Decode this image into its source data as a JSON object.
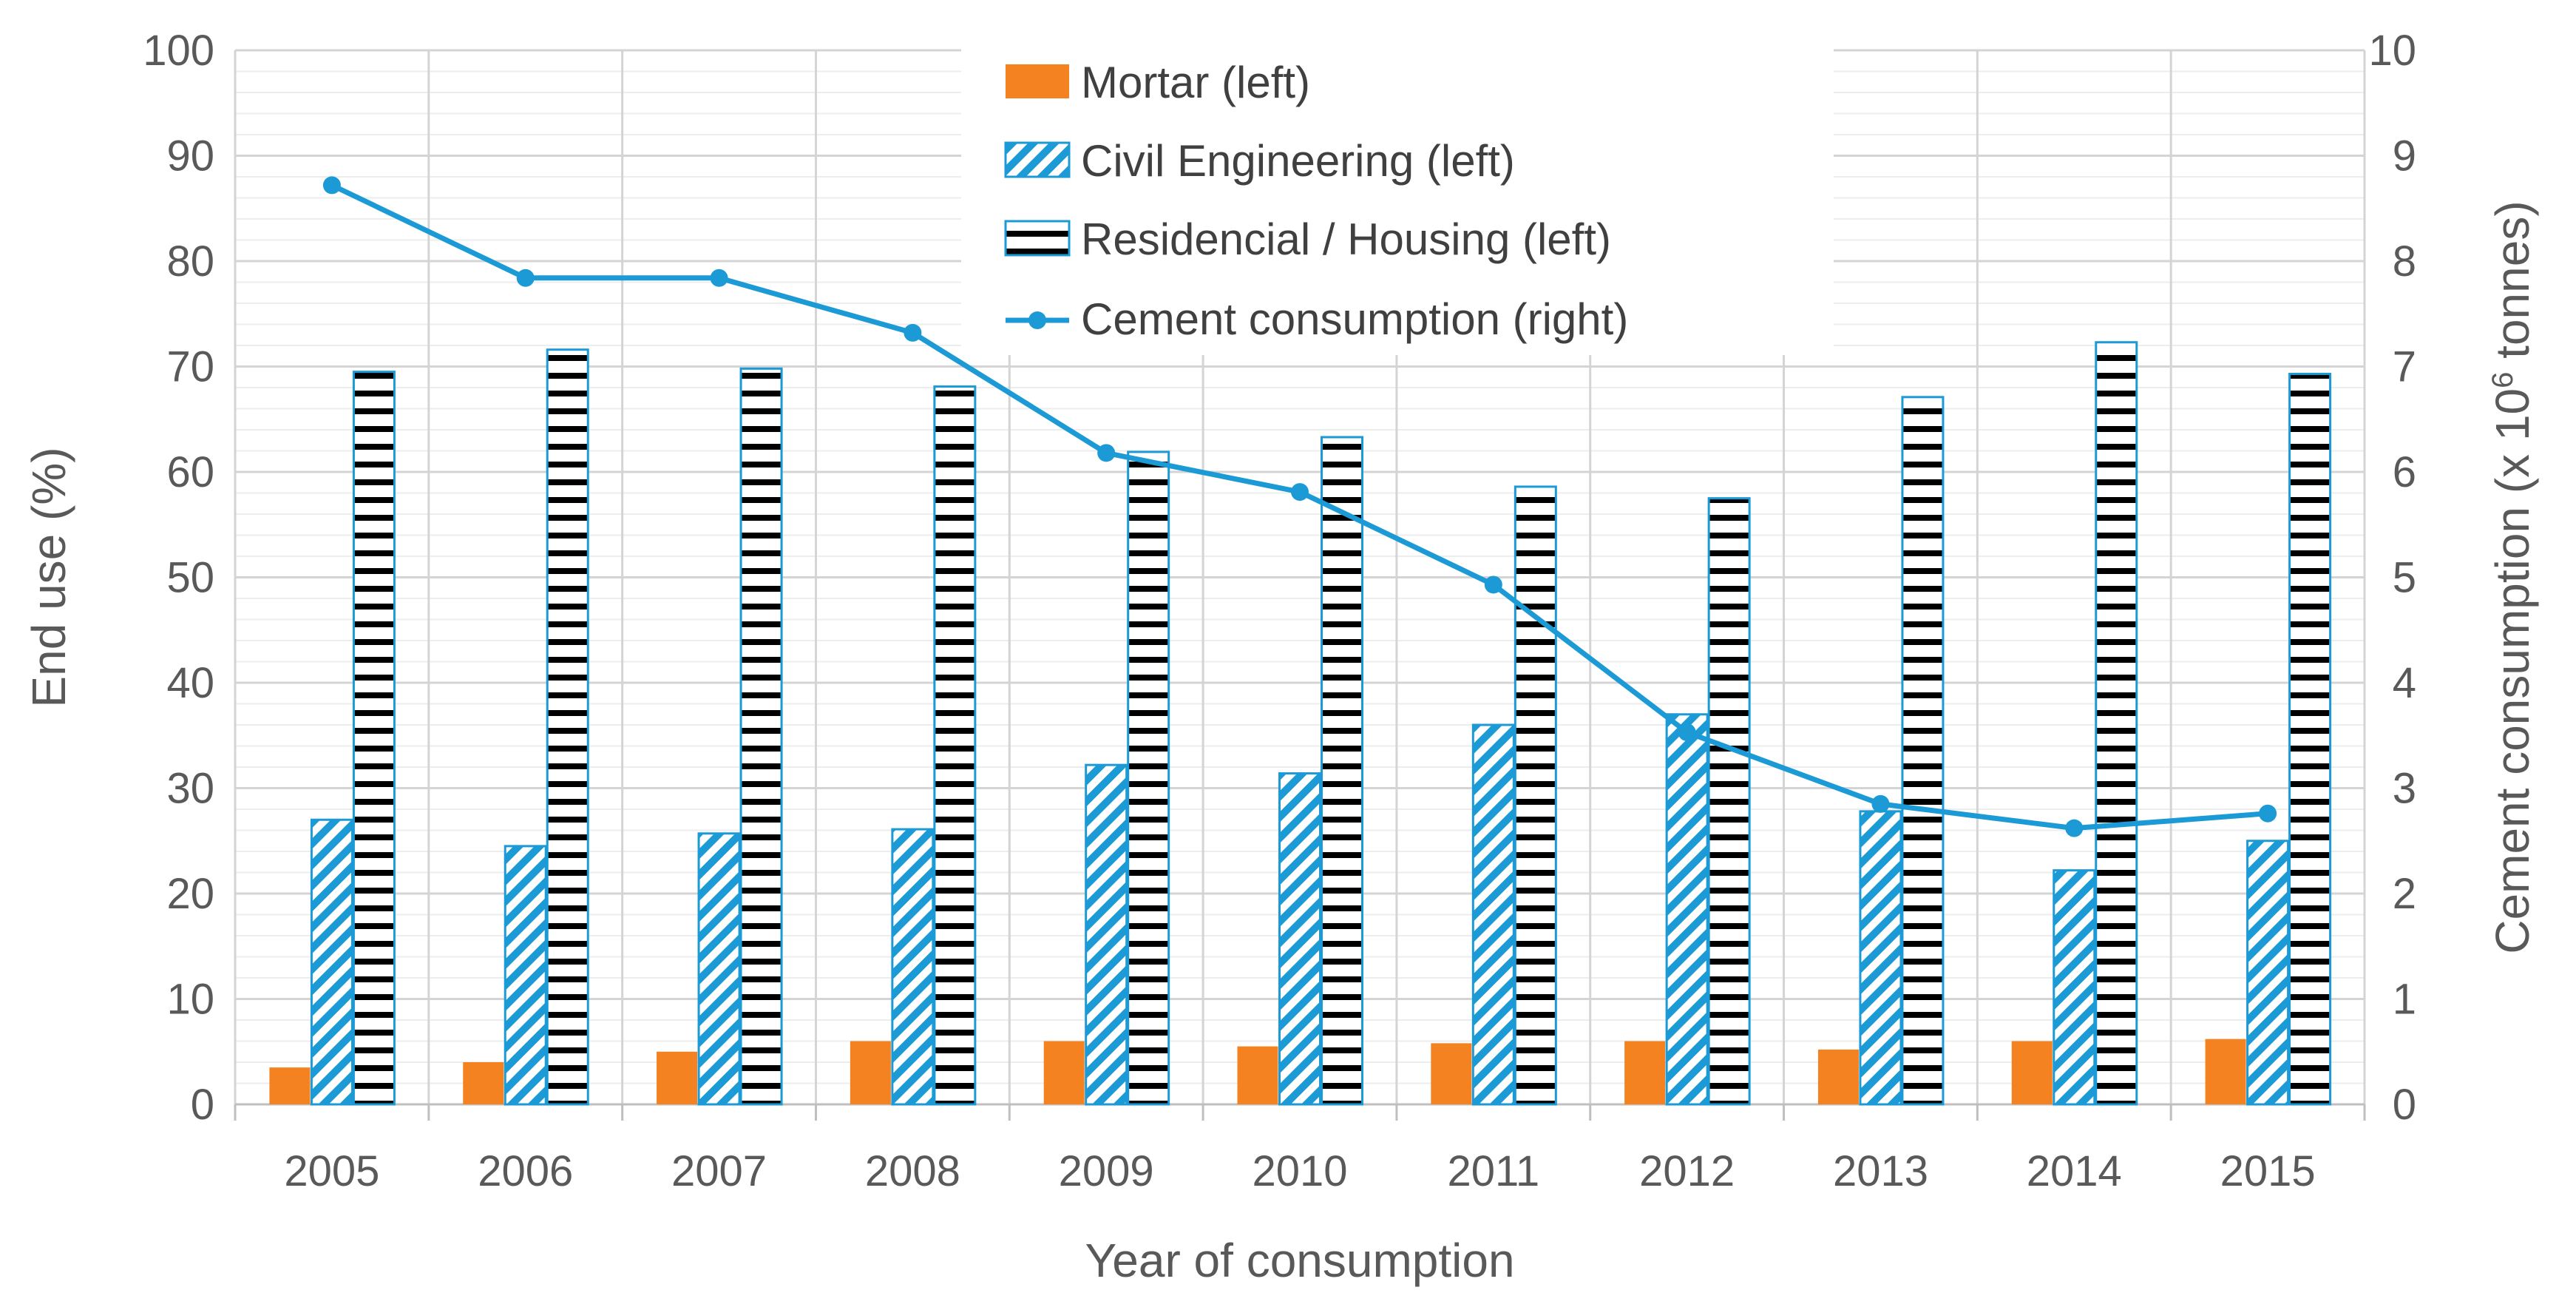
{
  "chart_data": {
    "type": "bar",
    "title": "",
    "xlabel": "Year of consumption",
    "ylabel": "End use (%)",
    "y2label_parts": [
      "Cement consumption (x 10",
      "6",
      " tonnes)"
    ],
    "categories": [
      "2005",
      "2006",
      "2007",
      "2008",
      "2009",
      "2010",
      "2011",
      "2012",
      "2013",
      "2014",
      "2015"
    ],
    "ylim": [
      0,
      100
    ],
    "y_ticks": [
      "0",
      "10",
      "20",
      "30",
      "40",
      "50",
      "60",
      "70",
      "80",
      "90",
      "100"
    ],
    "y2lim": [
      0,
      10
    ],
    "y2_ticks": [
      "0",
      "1",
      "2",
      "3",
      "4",
      "5",
      "6",
      "7",
      "8",
      "9",
      "10"
    ],
    "grid": true,
    "legend_position": "top-center",
    "series": [
      {
        "name": "Mortar (left)",
        "kind": "bar",
        "axis": "left",
        "color": "#F58220",
        "values": [
          3.5,
          4.0,
          5.0,
          6.0,
          6.0,
          5.5,
          5.8,
          6.0,
          5.2,
          6.0,
          6.2
        ]
      },
      {
        "name": "Civil Engineering (left)",
        "kind": "bar",
        "axis": "left",
        "color": "#1B9AD6",
        "pattern": "diagonal",
        "values": [
          27.0,
          24.5,
          25.7,
          26.1,
          32.2,
          31.4,
          36.0,
          37.0,
          27.8,
          22.2,
          25.0
        ]
      },
      {
        "name": "Residencial / Housing (left)",
        "kind": "bar",
        "axis": "left",
        "color": "#1B9AD6",
        "pattern": "horizontal",
        "values": [
          69.5,
          71.6,
          69.8,
          68.1,
          61.9,
          63.3,
          58.6,
          57.5,
          67.1,
          72.3,
          69.3
        ]
      },
      {
        "name": "Cement consumption (right)",
        "kind": "line",
        "axis": "right",
        "color": "#1B9AD6",
        "values": [
          8.72,
          7.84,
          7.84,
          7.32,
          6.18,
          5.81,
          4.93,
          3.53,
          2.85,
          2.62,
          2.76
        ]
      }
    ]
  }
}
